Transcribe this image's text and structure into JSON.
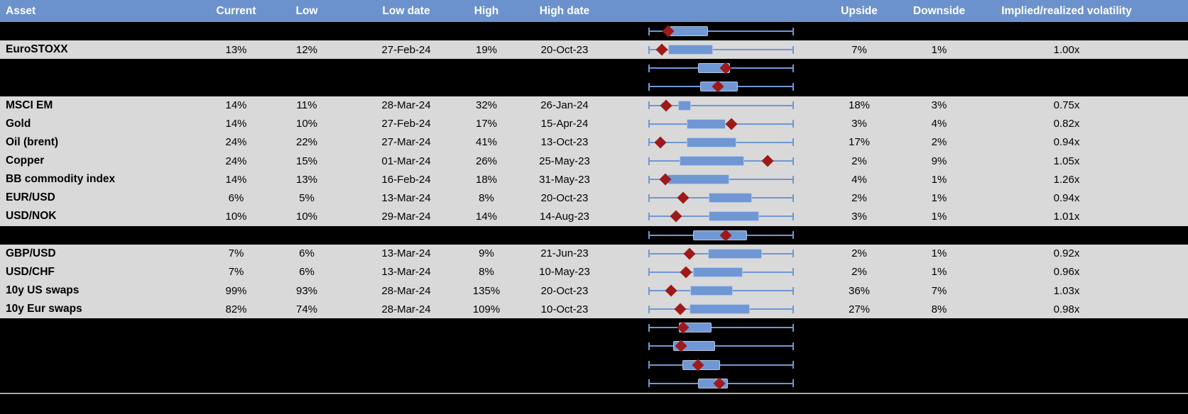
{
  "colors": {
    "header_bg": "#6C92CD",
    "header_text": "#FFFFFF",
    "row_gray": "#D9D9D9",
    "row_black": "#000000",
    "box_fill": "#6F97D4",
    "whisker": "#6F97D4",
    "marker_red": "#9E1A1A",
    "footer_line": "#A6A6A6"
  },
  "header": {
    "columns": {
      "asset": "Asset",
      "current": "Current",
      "low": "Low",
      "low_date": "Low date",
      "high": "High",
      "high_date": "High date",
      "plot": "",
      "upside": "Upside",
      "downside": "Downside",
      "ivrv": "Implied/realized volatility"
    }
  },
  "rows": [
    {
      "type": "black",
      "asset": "",
      "current": "",
      "low": "",
      "low_date": "",
      "high": "",
      "high_date": "",
      "upside": "",
      "downside": "",
      "ivrv": "",
      "plot": {
        "box": [
          0.145,
          0.408
        ],
        "marker": 0.135
      }
    },
    {
      "type": "gray",
      "asset": "EuroSTOXX",
      "current": "13%",
      "low": "12%",
      "low_date": "27-Feb-24",
      "high": "19%",
      "high_date": "20-Oct-23",
      "upside": "7%",
      "downside": "1%",
      "ivrv": "1.00x",
      "plot": {
        "box": [
          0.137,
          0.445
        ],
        "marker": 0.094
      }
    },
    {
      "type": "black",
      "asset": "",
      "current": "",
      "low": "",
      "low_date": "",
      "high": "",
      "high_date": "",
      "upside": "",
      "downside": "",
      "ivrv": "",
      "plot": {
        "box": [
          0.343,
          0.563
        ],
        "marker": 0.533
      }
    },
    {
      "type": "black",
      "asset": "",
      "current": "",
      "low": "",
      "low_date": "",
      "high": "",
      "high_date": "",
      "upside": "",
      "downside": "",
      "ivrv": "",
      "plot": {
        "box": [
          0.356,
          0.616
        ],
        "marker": 0.478
      }
    },
    {
      "type": "gray",
      "asset": "MSCI EM",
      "current": "14%",
      "low": "11%",
      "low_date": "28-Mar-24",
      "high": "32%",
      "high_date": "26-Jan-24",
      "upside": "18%",
      "downside": "3%",
      "ivrv": "0.75x",
      "plot": {
        "box": [
          0.205,
          0.291
        ],
        "marker": 0.124
      }
    },
    {
      "type": "gray",
      "asset": "Gold",
      "current": "14%",
      "low": "10%",
      "low_date": "27-Feb-24",
      "high": "17%",
      "high_date": "15-Apr-24",
      "upside": "3%",
      "downside": "4%",
      "ivrv": "0.82x",
      "plot": {
        "box": [
          0.262,
          0.53
        ],
        "marker": 0.571
      }
    },
    {
      "type": "gray",
      "asset": "Oil (brent)",
      "current": "24%",
      "low": "22%",
      "low_date": "27-Mar-24",
      "high": "41%",
      "high_date": "13-Oct-23",
      "upside": "17%",
      "downside": "2%",
      "ivrv": "0.94x",
      "plot": {
        "box": [
          0.262,
          0.603
        ],
        "marker": 0.083
      }
    },
    {
      "type": "gray",
      "asset": "Copper",
      "current": "24%",
      "low": "15%",
      "low_date": "01-Mar-24",
      "high": "26%",
      "high_date": "25-May-23",
      "upside": "2%",
      "downside": "9%",
      "ivrv": "1.05x",
      "plot": {
        "box": [
          0.216,
          0.66
        ],
        "marker": 0.82
      }
    },
    {
      "type": "gray",
      "asset": "BB commodity index",
      "current": "14%",
      "low": "13%",
      "low_date": "16-Feb-24",
      "high": "18%",
      "high_date": "31-May-23",
      "upside": "4%",
      "downside": "1%",
      "ivrv": "1.26x",
      "plot": {
        "box": [
          0.132,
          0.558
        ],
        "marker": 0.119
      }
    },
    {
      "type": "gray",
      "asset": "EUR/USD",
      "current": "6%",
      "low": "5%",
      "low_date": "13-Mar-24",
      "high": "8%",
      "high_date": "20-Oct-23",
      "upside": "2%",
      "downside": "1%",
      "ivrv": "0.94x",
      "plot": {
        "box": [
          0.413,
          0.714
        ],
        "marker": 0.241
      }
    },
    {
      "type": "gray",
      "asset": "USD/NOK",
      "current": "10%",
      "low": "10%",
      "low_date": "29-Mar-24",
      "high": "14%",
      "high_date": "14-Aug-23",
      "upside": "3%",
      "downside": "1%",
      "ivrv": "1.01x",
      "plot": {
        "box": [
          0.413,
          0.763
        ],
        "marker": 0.192
      }
    },
    {
      "type": "black",
      "asset": "",
      "current": "",
      "low": "",
      "low_date": "",
      "high": "",
      "high_date": "",
      "upside": "",
      "downside": "",
      "ivrv": "",
      "plot": {
        "box": [
          0.307,
          0.677
        ],
        "marker": 0.53
      }
    },
    {
      "type": "gray",
      "asset": "GBP/USD",
      "current": "7%",
      "low": "6%",
      "low_date": "13-Mar-24",
      "high": "9%",
      "high_date": "21-Jun-23",
      "upside": "2%",
      "downside": "1%",
      "ivrv": "0.92x",
      "plot": {
        "box": [
          0.408,
          0.782
        ],
        "marker": 0.281
      }
    },
    {
      "type": "gray",
      "asset": "USD/CHF",
      "current": "7%",
      "low": "6%",
      "low_date": "13-Mar-24",
      "high": "8%",
      "high_date": "10-May-23",
      "upside": "2%",
      "downside": "1%",
      "ivrv": "0.96x",
      "plot": {
        "box": [
          0.307,
          0.647
        ],
        "marker": 0.257
      }
    },
    {
      "type": "gray",
      "asset": "10y US swaps",
      "current": "99%",
      "low": "93%",
      "low_date": "28-Mar-24",
      "high": "135%",
      "high_date": "20-Oct-23",
      "upside": "36%",
      "downside": "7%",
      "ivrv": "1.03x",
      "plot": {
        "box": [
          0.286,
          0.582
        ],
        "marker": 0.156
      }
    },
    {
      "type": "gray",
      "asset": "10y Eur swaps",
      "current": "82%",
      "low": "74%",
      "low_date": "28-Mar-24",
      "high": "109%",
      "high_date": "10-Oct-23",
      "upside": "27%",
      "downside": "8%",
      "ivrv": "0.98x",
      "plot": {
        "box": [
          0.283,
          0.696
        ],
        "marker": 0.221
      }
    },
    {
      "type": "black",
      "asset": "",
      "current": "",
      "low": "",
      "low_date": "",
      "high": "",
      "high_date": "",
      "upside": "",
      "downside": "",
      "ivrv": "",
      "plot": {
        "box": [
          0.208,
          0.433
        ],
        "marker": 0.241
      }
    },
    {
      "type": "black",
      "asset": "",
      "current": "",
      "low": "",
      "low_date": "",
      "high": "",
      "high_date": "",
      "upside": "",
      "downside": "",
      "ivrv": "",
      "plot": {
        "box": [
          0.169,
          0.46
        ],
        "marker": 0.224
      }
    },
    {
      "type": "black",
      "asset": "",
      "current": "",
      "low": "",
      "low_date": "",
      "high": "",
      "high_date": "",
      "upside": "",
      "downside": "",
      "ivrv": "",
      "plot": {
        "box": [
          0.234,
          0.494
        ],
        "marker": 0.343
      }
    },
    {
      "type": "black",
      "asset": "",
      "current": "",
      "low": "",
      "low_date": "",
      "high": "",
      "high_date": "",
      "upside": "",
      "downside": "",
      "ivrv": "",
      "plot": {
        "box": [
          0.343,
          0.546
        ],
        "marker": 0.489
      }
    }
  ]
}
